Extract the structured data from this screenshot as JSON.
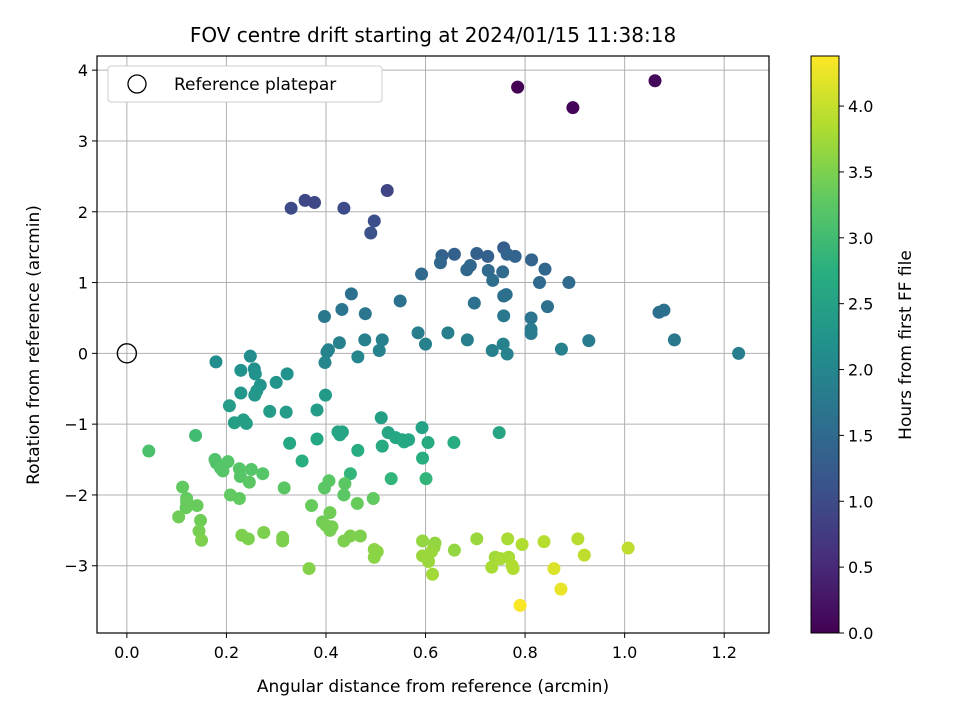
{
  "chart_data": {
    "type": "scatter",
    "title": "FOV centre drift starting at 2024/01/15 11:38:18",
    "xlabel": "Angular distance from reference (arcmin)",
    "ylabel": "Rotation from reference (arcmin)",
    "xlim": [
      -0.06,
      1.29
    ],
    "ylim": [
      -3.95,
      4.2
    ],
    "xticks": [
      0.0,
      0.2,
      0.4,
      0.6,
      0.8,
      1.0,
      1.2
    ],
    "xtick_labels": [
      "0.0",
      "0.2",
      "0.4",
      "0.6",
      "0.8",
      "1.0",
      "1.2"
    ],
    "yticks": [
      -3,
      -2,
      -1,
      0,
      1,
      2,
      3,
      4
    ],
    "ytick_labels": [
      "−3",
      "−2",
      "−1",
      "0",
      "1",
      "2",
      "3",
      "4"
    ],
    "grid": true,
    "legend": {
      "position": "top-left",
      "entries": [
        "Reference platepar"
      ]
    },
    "reference_point": {
      "x": 0.0,
      "y": 0.0
    },
    "colorbar": {
      "label": "Hours from first FF file",
      "colormap": "viridis",
      "range": [
        0.0,
        4.38
      ],
      "ticks": [
        0.0,
        0.5,
        1.0,
        1.5,
        2.0,
        2.5,
        3.0,
        3.5,
        4.0
      ],
      "tick_labels": [
        "0.0",
        "0.5",
        "1.0",
        "1.5",
        "2.0",
        "2.5",
        "3.0",
        "3.5",
        "4.0"
      ]
    },
    "points": [
      {
        "x": 0.785,
        "y": 3.76,
        "c": 0.02
      },
      {
        "x": 0.896,
        "y": 3.47,
        "c": 0.05
      },
      {
        "x": 1.061,
        "y": 3.85,
        "c": 0.1
      },
      {
        "x": 0.523,
        "y": 2.3,
        "c": 0.9
      },
      {
        "x": 0.358,
        "y": 2.16,
        "c": 0.95
      },
      {
        "x": 0.377,
        "y": 2.13,
        "c": 0.95
      },
      {
        "x": 0.33,
        "y": 2.05,
        "c": 1.0
      },
      {
        "x": 0.436,
        "y": 2.05,
        "c": 1.0
      },
      {
        "x": 0.497,
        "y": 1.87,
        "c": 1.05
      },
      {
        "x": 0.49,
        "y": 1.7,
        "c": 1.1
      },
      {
        "x": 0.757,
        "y": 1.49,
        "c": 1.3
      },
      {
        "x": 0.633,
        "y": 1.38,
        "c": 1.35
      },
      {
        "x": 0.658,
        "y": 1.4,
        "c": 1.35
      },
      {
        "x": 0.703,
        "y": 1.41,
        "c": 1.35
      },
      {
        "x": 0.725,
        "y": 1.37,
        "c": 1.35
      },
      {
        "x": 0.764,
        "y": 1.4,
        "c": 1.4
      },
      {
        "x": 0.78,
        "y": 1.37,
        "c": 1.4
      },
      {
        "x": 0.813,
        "y": 1.32,
        "c": 1.4
      },
      {
        "x": 0.63,
        "y": 1.28,
        "c": 1.45
      },
      {
        "x": 0.69,
        "y": 1.24,
        "c": 1.45
      },
      {
        "x": 0.683,
        "y": 1.18,
        "c": 1.45
      },
      {
        "x": 0.726,
        "y": 1.17,
        "c": 1.5
      },
      {
        "x": 0.755,
        "y": 1.15,
        "c": 1.5
      },
      {
        "x": 0.84,
        "y": 1.19,
        "c": 1.45
      },
      {
        "x": 0.592,
        "y": 1.12,
        "c": 1.5
      },
      {
        "x": 0.735,
        "y": 1.03,
        "c": 1.55
      },
      {
        "x": 0.829,
        "y": 1.0,
        "c": 1.5
      },
      {
        "x": 0.888,
        "y": 1.0,
        "c": 1.5
      },
      {
        "x": 0.762,
        "y": 0.83,
        "c": 1.6
      },
      {
        "x": 0.757,
        "y": 0.81,
        "c": 1.6
      },
      {
        "x": 0.451,
        "y": 0.84,
        "c": 1.6
      },
      {
        "x": 0.549,
        "y": 0.74,
        "c": 1.65
      },
      {
        "x": 0.698,
        "y": 0.71,
        "c": 1.65
      },
      {
        "x": 0.845,
        "y": 0.66,
        "c": 1.6
      },
      {
        "x": 0.432,
        "y": 0.62,
        "c": 1.7
      },
      {
        "x": 0.479,
        "y": 0.56,
        "c": 1.7
      },
      {
        "x": 0.397,
        "y": 0.52,
        "c": 1.75
      },
      {
        "x": 0.757,
        "y": 0.53,
        "c": 1.75
      },
      {
        "x": 0.812,
        "y": 0.5,
        "c": 1.7
      },
      {
        "x": 1.069,
        "y": 0.58,
        "c": 1.6
      },
      {
        "x": 1.079,
        "y": 0.61,
        "c": 1.6
      },
      {
        "x": 0.812,
        "y": 0.34,
        "c": 1.8
      },
      {
        "x": 0.812,
        "y": 0.28,
        "c": 1.8
      },
      {
        "x": 0.585,
        "y": 0.29,
        "c": 1.85
      },
      {
        "x": 0.645,
        "y": 0.29,
        "c": 1.85
      },
      {
        "x": 0.427,
        "y": 0.15,
        "c": 1.9
      },
      {
        "x": 0.478,
        "y": 0.19,
        "c": 1.9
      },
      {
        "x": 0.513,
        "y": 0.19,
        "c": 1.9
      },
      {
        "x": 0.684,
        "y": 0.19,
        "c": 1.85
      },
      {
        "x": 0.6,
        "y": 0.13,
        "c": 1.9
      },
      {
        "x": 0.928,
        "y": 0.18,
        "c": 1.8
      },
      {
        "x": 1.1,
        "y": 0.19,
        "c": 1.75
      },
      {
        "x": 0.405,
        "y": 0.05,
        "c": 1.95
      },
      {
        "x": 0.402,
        "y": 0.02,
        "c": 1.95
      },
      {
        "x": 0.507,
        "y": 0.04,
        "c": 1.95
      },
      {
        "x": 0.734,
        "y": 0.04,
        "c": 1.9
      },
      {
        "x": 0.756,
        "y": 0.13,
        "c": 1.9
      },
      {
        "x": 0.764,
        "y": -0.01,
        "c": 1.95
      },
      {
        "x": 0.873,
        "y": 0.06,
        "c": 1.9
      },
      {
        "x": 1.229,
        "y": 0.0,
        "c": 1.85
      },
      {
        "x": 0.398,
        "y": -0.13,
        "c": 2.0
      },
      {
        "x": 0.464,
        "y": -0.05,
        "c": 2.0
      },
      {
        "x": 0.248,
        "y": -0.04,
        "c": 2.1
      },
      {
        "x": 0.179,
        "y": -0.12,
        "c": 2.1
      },
      {
        "x": 0.256,
        "y": -0.22,
        "c": 2.15
      },
      {
        "x": 0.229,
        "y": -0.24,
        "c": 2.2
      },
      {
        "x": 0.258,
        "y": -0.29,
        "c": 2.2
      },
      {
        "x": 0.322,
        "y": -0.29,
        "c": 2.2
      },
      {
        "x": 0.3,
        "y": -0.41,
        "c": 2.25
      },
      {
        "x": 0.268,
        "y": -0.45,
        "c": 2.25
      },
      {
        "x": 0.229,
        "y": -0.56,
        "c": 2.3
      },
      {
        "x": 0.261,
        "y": -0.53,
        "c": 2.3
      },
      {
        "x": 0.257,
        "y": -0.59,
        "c": 2.3
      },
      {
        "x": 0.399,
        "y": -0.59,
        "c": 2.35
      },
      {
        "x": 0.206,
        "y": -0.74,
        "c": 2.4
      },
      {
        "x": 0.287,
        "y": -0.82,
        "c": 2.4
      },
      {
        "x": 0.32,
        "y": -0.83,
        "c": 2.4
      },
      {
        "x": 0.382,
        "y": -0.8,
        "c": 2.4
      },
      {
        "x": 0.511,
        "y": -0.91,
        "c": 2.45
      },
      {
        "x": 0.216,
        "y": -0.98,
        "c": 2.45
      },
      {
        "x": 0.234,
        "y": -0.94,
        "c": 2.45
      },
      {
        "x": 0.24,
        "y": -0.99,
        "c": 2.45
      },
      {
        "x": 0.593,
        "y": -1.05,
        "c": 2.5
      },
      {
        "x": 0.424,
        "y": -1.11,
        "c": 2.55
      },
      {
        "x": 0.433,
        "y": -1.11,
        "c": 2.55
      },
      {
        "x": 0.428,
        "y": -1.15,
        "c": 2.55
      },
      {
        "x": 0.382,
        "y": -1.21,
        "c": 2.6
      },
      {
        "x": 0.327,
        "y": -1.27,
        "c": 2.6
      },
      {
        "x": 0.525,
        "y": -1.12,
        "c": 2.55
      },
      {
        "x": 0.54,
        "y": -1.19,
        "c": 2.6
      },
      {
        "x": 0.553,
        "y": -1.22,
        "c": 2.6
      },
      {
        "x": 0.557,
        "y": -1.25,
        "c": 2.65
      },
      {
        "x": 0.566,
        "y": -1.22,
        "c": 2.6
      },
      {
        "x": 0.605,
        "y": -1.26,
        "c": 2.65
      },
      {
        "x": 0.657,
        "y": -1.26,
        "c": 2.7
      },
      {
        "x": 0.513,
        "y": -1.31,
        "c": 2.65
      },
      {
        "x": 0.464,
        "y": -1.37,
        "c": 2.7
      },
      {
        "x": 0.352,
        "y": -1.52,
        "c": 2.75
      },
      {
        "x": 0.594,
        "y": -1.48,
        "c": 2.75
      },
      {
        "x": 0.748,
        "y": -1.12,
        "c": 2.55
      },
      {
        "x": 0.449,
        "y": -1.7,
        "c": 2.85
      },
      {
        "x": 0.531,
        "y": -1.77,
        "c": 2.85
      },
      {
        "x": 0.601,
        "y": -1.77,
        "c": 2.85
      },
      {
        "x": 0.044,
        "y": -1.38,
        "c": 3.1
      },
      {
        "x": 0.138,
        "y": -1.16,
        "c": 3.0
      },
      {
        "x": 0.177,
        "y": -1.5,
        "c": 3.15
      },
      {
        "x": 0.18,
        "y": -1.55,
        "c": 3.15
      },
      {
        "x": 0.188,
        "y": -1.62,
        "c": 3.2
      },
      {
        "x": 0.203,
        "y": -1.53,
        "c": 3.2
      },
      {
        "x": 0.226,
        "y": -1.63,
        "c": 3.2
      },
      {
        "x": 0.193,
        "y": -1.66,
        "c": 3.2
      },
      {
        "x": 0.25,
        "y": -1.64,
        "c": 3.2
      },
      {
        "x": 0.228,
        "y": -1.74,
        "c": 3.2
      },
      {
        "x": 0.273,
        "y": -1.7,
        "c": 3.2
      },
      {
        "x": 0.246,
        "y": -1.82,
        "c": 3.25
      },
      {
        "x": 0.406,
        "y": -1.8,
        "c": 3.25
      },
      {
        "x": 0.438,
        "y": -1.84,
        "c": 3.25
      },
      {
        "x": 0.397,
        "y": -1.9,
        "c": 3.25
      },
      {
        "x": 0.316,
        "y": -1.9,
        "c": 3.25
      },
      {
        "x": 0.112,
        "y": -1.89,
        "c": 3.3
      },
      {
        "x": 0.208,
        "y": -2.0,
        "c": 3.3
      },
      {
        "x": 0.226,
        "y": -2.05,
        "c": 3.3
      },
      {
        "x": 0.436,
        "y": -2.0,
        "c": 3.25
      },
      {
        "x": 0.495,
        "y": -2.05,
        "c": 3.3
      },
      {
        "x": 0.12,
        "y": -2.05,
        "c": 3.3
      },
      {
        "x": 0.12,
        "y": -2.1,
        "c": 3.35
      },
      {
        "x": 0.141,
        "y": -2.15,
        "c": 3.35
      },
      {
        "x": 0.119,
        "y": -2.18,
        "c": 3.35
      },
      {
        "x": 0.371,
        "y": -2.15,
        "c": 3.35
      },
      {
        "x": 0.463,
        "y": -2.12,
        "c": 3.35
      },
      {
        "x": 0.408,
        "y": -2.25,
        "c": 3.4
      },
      {
        "x": 0.104,
        "y": -2.31,
        "c": 3.4
      },
      {
        "x": 0.148,
        "y": -2.36,
        "c": 3.4
      },
      {
        "x": 0.393,
        "y": -2.38,
        "c": 3.4
      },
      {
        "x": 0.4,
        "y": -2.43,
        "c": 3.45
      },
      {
        "x": 0.145,
        "y": -2.51,
        "c": 3.45
      },
      {
        "x": 0.408,
        "y": -2.5,
        "c": 3.45
      },
      {
        "x": 0.412,
        "y": -2.45,
        "c": 3.45
      },
      {
        "x": 0.231,
        "y": -2.57,
        "c": 3.5
      },
      {
        "x": 0.275,
        "y": -2.53,
        "c": 3.5
      },
      {
        "x": 0.244,
        "y": -2.62,
        "c": 3.5
      },
      {
        "x": 0.313,
        "y": -2.6,
        "c": 3.5
      },
      {
        "x": 0.313,
        "y": -2.65,
        "c": 3.5
      },
      {
        "x": 0.436,
        "y": -2.65,
        "c": 3.5
      },
      {
        "x": 0.449,
        "y": -2.58,
        "c": 3.5
      },
      {
        "x": 0.469,
        "y": -2.58,
        "c": 3.5
      },
      {
        "x": 0.15,
        "y": -2.64,
        "c": 3.5
      },
      {
        "x": 0.497,
        "y": -2.77,
        "c": 3.6
      },
      {
        "x": 0.503,
        "y": -2.8,
        "c": 3.6
      },
      {
        "x": 0.497,
        "y": -2.88,
        "c": 3.6
      },
      {
        "x": 0.594,
        "y": -2.65,
        "c": 3.65
      },
      {
        "x": 0.619,
        "y": -2.68,
        "c": 3.65
      },
      {
        "x": 0.617,
        "y": -2.74,
        "c": 3.65
      },
      {
        "x": 0.658,
        "y": -2.78,
        "c": 3.65
      },
      {
        "x": 0.703,
        "y": -2.62,
        "c": 3.7
      },
      {
        "x": 0.612,
        "y": -2.8,
        "c": 3.7
      },
      {
        "x": 0.594,
        "y": -2.86,
        "c": 3.7
      },
      {
        "x": 0.606,
        "y": -2.94,
        "c": 3.7
      },
      {
        "x": 0.366,
        "y": -3.04,
        "c": 3.55
      },
      {
        "x": 0.614,
        "y": -3.12,
        "c": 3.75
      },
      {
        "x": 0.74,
        "y": -2.88,
        "c": 3.75
      },
      {
        "x": 0.751,
        "y": -2.9,
        "c": 3.8
      },
      {
        "x": 0.767,
        "y": -2.88,
        "c": 3.8
      },
      {
        "x": 0.733,
        "y": -3.02,
        "c": 3.8
      },
      {
        "x": 0.765,
        "y": -2.62,
        "c": 3.8
      },
      {
        "x": 0.774,
        "y": -3.0,
        "c": 3.85
      },
      {
        "x": 0.776,
        "y": -3.04,
        "c": 3.85
      },
      {
        "x": 0.794,
        "y": -2.7,
        "c": 3.85
      },
      {
        "x": 0.838,
        "y": -2.66,
        "c": 3.9
      },
      {
        "x": 0.906,
        "y": -2.62,
        "c": 3.9
      },
      {
        "x": 0.919,
        "y": -2.85,
        "c": 3.95
      },
      {
        "x": 1.007,
        "y": -2.75,
        "c": 3.95
      },
      {
        "x": 0.858,
        "y": -3.04,
        "c": 4.15
      },
      {
        "x": 0.872,
        "y": -3.33,
        "c": 4.25
      },
      {
        "x": 0.79,
        "y": -3.56,
        "c": 4.35
      }
    ]
  }
}
